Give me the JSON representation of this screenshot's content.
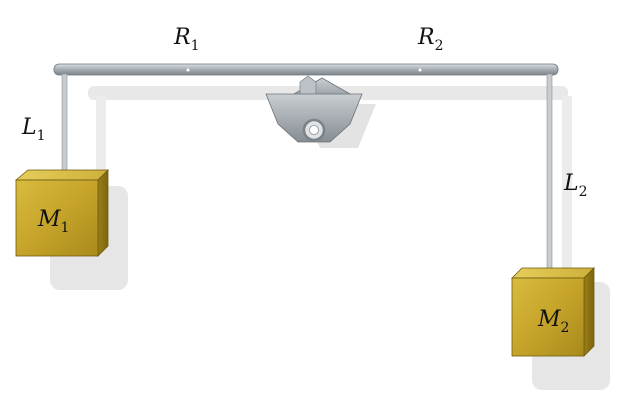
{
  "labels": {
    "r1": {
      "main": "R",
      "sub": "1"
    },
    "r2": {
      "main": "R",
      "sub": "2"
    },
    "l1": {
      "main": "L",
      "sub": "1"
    },
    "l2": {
      "main": "L",
      "sub": "2"
    },
    "m1": {
      "main": "M",
      "sub": "1"
    },
    "m2": {
      "main": "M",
      "sub": "2"
    }
  },
  "colors": {
    "beam": "#9aa3aa",
    "mass_gold": "#c9a92e",
    "shadow": "#e6e6e6",
    "string": "#b9bfc4",
    "pivot": "#9da3a8"
  }
}
